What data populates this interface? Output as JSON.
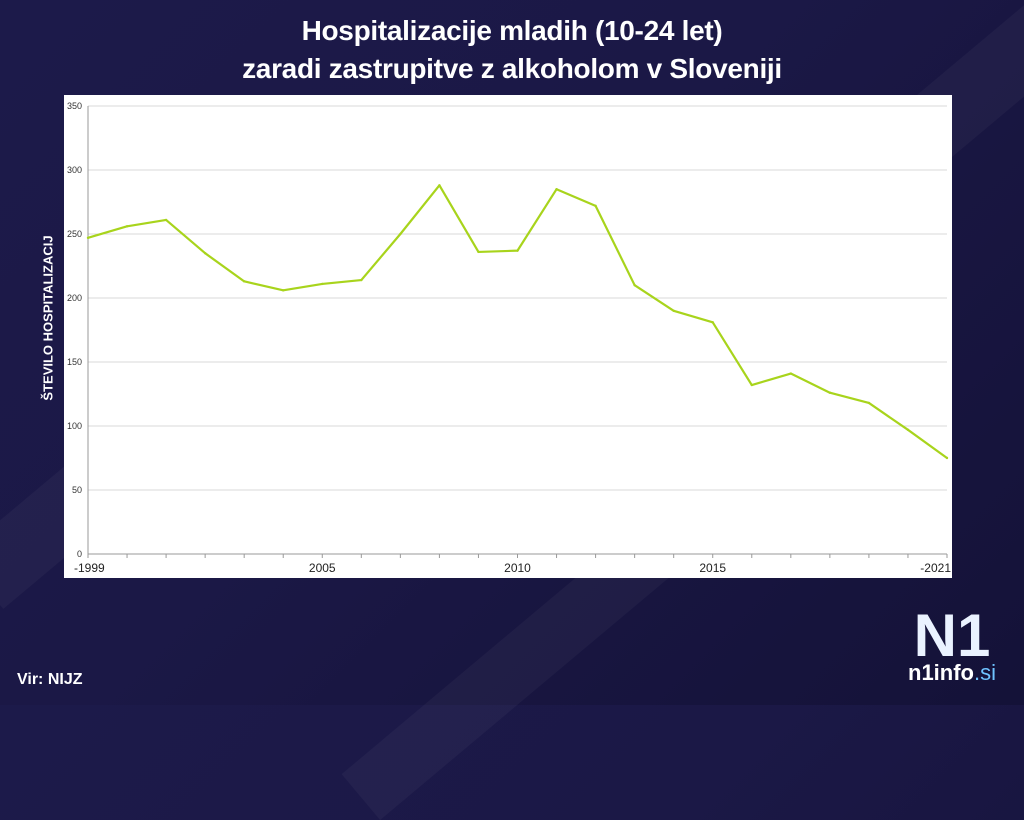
{
  "title_line1": "Hospitalizacije mladih (10-24 let)",
  "title_line2": "zaradi zastrupitve z alkoholom v Sloveniji",
  "source": "Vir: NIJZ",
  "logo": {
    "mark": "N1",
    "text": "n1info",
    "tld": ".si"
  },
  "colors": {
    "line": "#a8d41c",
    "grid": "#d9d9d9",
    "background": "#1b1846"
  },
  "chart_data": {
    "type": "line",
    "ylabel": "ŠTEVILO HOSPITALIZACIJ",
    "ylim": [
      0,
      350
    ],
    "yticks": [
      0,
      50,
      100,
      150,
      200,
      250,
      300,
      350
    ],
    "xlim": [
      1999,
      2021
    ],
    "xticks": [
      {
        "value": 1999,
        "label": "-1999"
      },
      {
        "value": 2005,
        "label": "2005"
      },
      {
        "value": 2010,
        "label": "2010"
      },
      {
        "value": 2015,
        "label": "2015"
      },
      {
        "value": 2021,
        "label": "-2021"
      }
    ],
    "grid": true,
    "x": [
      1999,
      2000,
      2001,
      2002,
      2003,
      2004,
      2005,
      2006,
      2007,
      2008,
      2009,
      2010,
      2011,
      2012,
      2013,
      2014,
      2015,
      2016,
      2017,
      2018,
      2019,
      2020,
      2021
    ],
    "values": [
      247,
      256,
      261,
      235,
      213,
      206,
      211,
      214,
      250,
      288,
      236,
      237,
      285,
      272,
      210,
      190,
      181,
      132,
      141,
      126,
      118,
      97,
      75
    ]
  }
}
